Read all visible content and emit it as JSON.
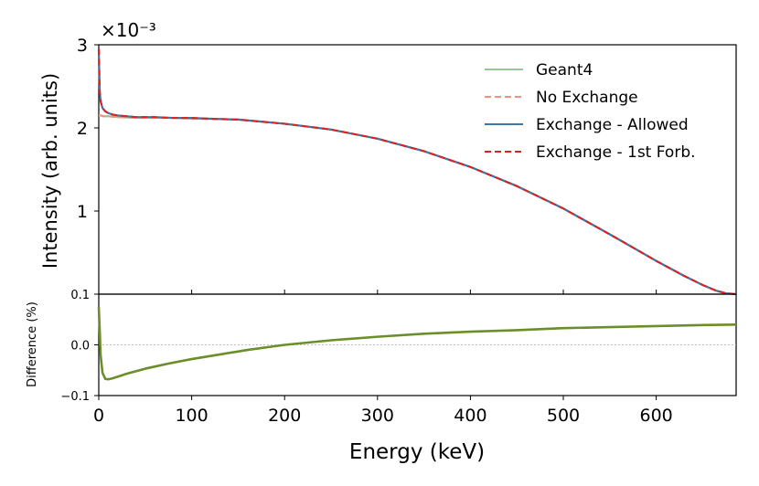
{
  "chart_data": [
    {
      "type": "line",
      "panel": "main",
      "xlabel": "",
      "ylabel": "Intensity (arb. units)",
      "scale_label": "×10⁻³",
      "xlim": [
        0,
        686
      ],
      "ylim": [
        0,
        3.0
      ],
      "yticks": [
        {
          "value": 1,
          "label": "1"
        },
        {
          "value": 2,
          "label": "2"
        },
        {
          "value": 3,
          "label": "3"
        }
      ],
      "legend_position": "top-right",
      "series": [
        {
          "name": "Geant4",
          "color": "#9cc49a",
          "style": "solid",
          "x": [
            0,
            2,
            5,
            10,
            20,
            40,
            60,
            80,
            100,
            120,
            150,
            200,
            250,
            300,
            350,
            400,
            450,
            500,
            550,
            600,
            630,
            650,
            665,
            675,
            686
          ],
          "y": [
            2.15,
            2.15,
            2.14,
            2.14,
            2.13,
            2.12,
            2.12,
            2.12,
            2.11,
            2.11,
            2.1,
            2.05,
            1.98,
            1.87,
            1.72,
            1.53,
            1.3,
            1.03,
            0.72,
            0.4,
            0.22,
            0.11,
            0.04,
            0.01,
            0.0
          ]
        },
        {
          "name": "No Exchange",
          "color": "#f0907e",
          "style": "dashed",
          "x": [
            0,
            2,
            5,
            10,
            20,
            40,
            60,
            80,
            100,
            120,
            150,
            200,
            250,
            300,
            350,
            400,
            450,
            500,
            550,
            600,
            630,
            650,
            665,
            675,
            686
          ],
          "y": [
            2.15,
            2.15,
            2.14,
            2.14,
            2.13,
            2.12,
            2.12,
            2.12,
            2.11,
            2.11,
            2.1,
            2.05,
            1.98,
            1.87,
            1.72,
            1.53,
            1.3,
            1.03,
            0.72,
            0.4,
            0.22,
            0.11,
            0.04,
            0.01,
            0.0
          ]
        },
        {
          "name": "Exchange - Allowed",
          "color": "#3a78a8",
          "style": "solid",
          "x": [
            0,
            1,
            2,
            4,
            7,
            10,
            15,
            20,
            30,
            40,
            60,
            80,
            100,
            120,
            150,
            200,
            250,
            300,
            350,
            400,
            450,
            500,
            550,
            600,
            630,
            650,
            665,
            675,
            686
          ],
          "y": [
            2.95,
            2.45,
            2.32,
            2.24,
            2.2,
            2.18,
            2.16,
            2.15,
            2.14,
            2.13,
            2.13,
            2.12,
            2.12,
            2.11,
            2.1,
            2.05,
            1.98,
            1.87,
            1.72,
            1.53,
            1.3,
            1.03,
            0.72,
            0.4,
            0.22,
            0.11,
            0.04,
            0.01,
            0.0
          ]
        },
        {
          "name": "Exchange - 1st Forb.",
          "color": "#e0201e",
          "style": "dashed",
          "x": [
            0,
            1,
            2,
            4,
            7,
            10,
            15,
            20,
            30,
            40,
            60,
            80,
            100,
            120,
            150,
            200,
            250,
            300,
            350,
            400,
            450,
            500,
            550,
            600,
            630,
            650,
            665,
            675,
            686
          ],
          "y": [
            2.95,
            2.45,
            2.32,
            2.24,
            2.2,
            2.18,
            2.16,
            2.15,
            2.14,
            2.13,
            2.13,
            2.12,
            2.12,
            2.11,
            2.1,
            2.05,
            1.98,
            1.87,
            1.72,
            1.53,
            1.3,
            1.03,
            0.72,
            0.4,
            0.22,
            0.11,
            0.04,
            0.01,
            0.0
          ]
        }
      ]
    },
    {
      "type": "line",
      "panel": "difference",
      "xlabel": "Energy (keV)",
      "ylabel": "Difference (%)",
      "xlim": [
        0,
        686
      ],
      "ylim": [
        -0.1,
        0.1
      ],
      "xticks": [
        {
          "value": 0,
          "label": "0"
        },
        {
          "value": 100,
          "label": "100"
        },
        {
          "value": 200,
          "label": "200"
        },
        {
          "value": 300,
          "label": "300"
        },
        {
          "value": 400,
          "label": "400"
        },
        {
          "value": 500,
          "label": "500"
        },
        {
          "value": 600,
          "label": "600"
        }
      ],
      "yticks": [
        {
          "value": -0.1,
          "label": "−0.1"
        },
        {
          "value": 0.0,
          "label": "0.0"
        },
        {
          "value": 0.1,
          "label": "0.1"
        }
      ],
      "reference_line": 0.0,
      "series": [
        {
          "name": "Difference",
          "color": "#6a8f2a",
          "style": "solid",
          "x": [
            0,
            1,
            2,
            4,
            7,
            10,
            15,
            20,
            30,
            50,
            75,
            100,
            130,
            160,
            200,
            250,
            300,
            350,
            400,
            450,
            500,
            550,
            600,
            650,
            686
          ],
          "y": [
            0.075,
            0.03,
            -0.02,
            -0.055,
            -0.067,
            -0.068,
            -0.066,
            -0.063,
            -0.057,
            -0.047,
            -0.037,
            -0.028,
            -0.019,
            -0.01,
            0.0,
            0.009,
            0.016,
            0.022,
            0.026,
            0.029,
            0.033,
            0.035,
            0.037,
            0.039,
            0.04
          ]
        }
      ]
    }
  ]
}
